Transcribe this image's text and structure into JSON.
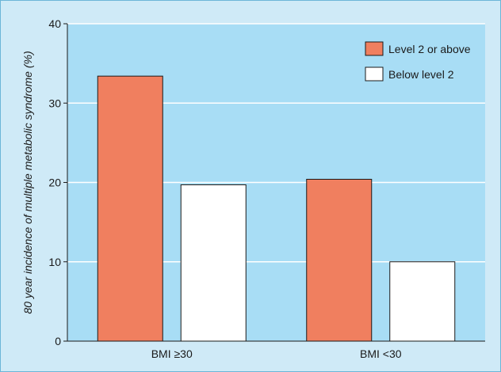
{
  "chart_data": {
    "type": "bar",
    "title": "",
    "xlabel": "",
    "ylabel": "80 year incidence of multiple metabolic syndrome (%)",
    "ylim": [
      0,
      40
    ],
    "yticks": [
      0,
      10,
      20,
      30,
      40
    ],
    "grid": true,
    "legend_position": "top-right",
    "categories": [
      "BMI ≥30",
      "BMI <30"
    ],
    "series": [
      {
        "name": "Level 2 or above",
        "color": "#f07f5f",
        "values": [
          33.4,
          20.4
        ]
      },
      {
        "name": "Below level 2",
        "color": "#ffffff",
        "values": [
          19.7,
          10.0
        ]
      }
    ]
  },
  "colors": {
    "frame_background": "#cfeaf7",
    "plot_background": "#a8ddf5",
    "grid": "#ffffff",
    "axis": "#1a1a1a"
  }
}
